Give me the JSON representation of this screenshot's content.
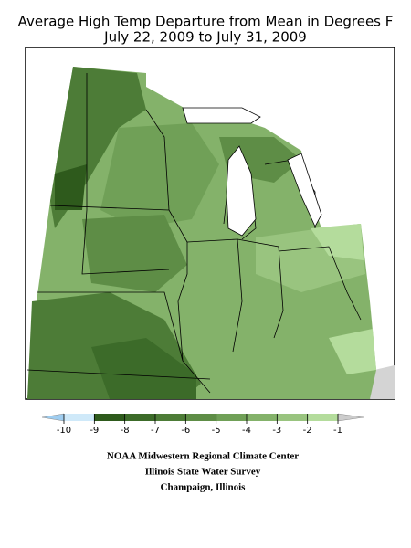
{
  "header": {
    "title": "Average High Temp Departure from Mean in Degrees F",
    "subtitle": "July 22, 2009 to July 31, 2009"
  },
  "legend": {
    "ticks": [
      -10,
      -9,
      -8,
      -7,
      -6,
      -5,
      -4,
      -3,
      -2,
      -1
    ],
    "colors": [
      "#9fcdf0",
      "#cfe9f9",
      "#2e5a1c",
      "#3c6b29",
      "#4d7c37",
      "#5e8d46",
      "#70a057",
      "#84b26a",
      "#99c47f",
      "#b4dc9c",
      "#cccccc"
    ]
  },
  "credits": [
    "NOAA Midwestern Regional Climate Center",
    "Illinois State Water Survey",
    "Champaign, Illinois"
  ]
}
